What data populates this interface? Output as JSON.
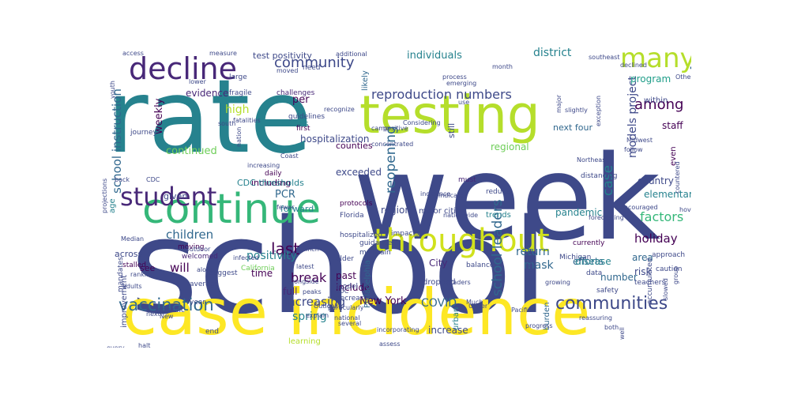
{
  "palette": [
    "#fde725",
    "#b5de2b",
    "#6ece58",
    "#35b779",
    "#1f9e89",
    "#26828e",
    "#31688e",
    "#3e4989",
    "#482878",
    "#440154"
  ],
  "words": [
    {
      "text": "school",
      "color": "#3e4989"
    },
    {
      "text": "week",
      "color": "#3e4989"
    },
    {
      "text": "rate",
      "color": "#26828e"
    },
    {
      "text": "case incidence",
      "color": "#fde725"
    },
    {
      "text": "testing",
      "color": "#b5de2b"
    },
    {
      "text": "continue",
      "color": "#35b779"
    },
    {
      "text": "throughout",
      "color": "#d0e11c"
    },
    {
      "text": "decline",
      "color": "#482878"
    },
    {
      "text": "student",
      "color": "#482878"
    },
    {
      "text": "many",
      "color": "#b5de2b"
    },
    {
      "text": "transmission",
      "color": "#31688e"
    },
    {
      "text": "communities",
      "color": "#3e4989"
    },
    {
      "text": "vaccination",
      "color": "#31688e"
    },
    {
      "text": "community",
      "color": "#3e4989"
    },
    {
      "text": "reproduction numbers",
      "color": "#3e4989"
    },
    {
      "text": "among",
      "color": "#440154"
    },
    {
      "text": "school leaders",
      "color": "#31688e"
    },
    {
      "text": "last",
      "color": "#440154"
    },
    {
      "text": "increasing",
      "color": "#3e4989"
    },
    {
      "text": "reopening",
      "color": "#31688e"
    },
    {
      "text": "case",
      "color": "#26828e"
    },
    {
      "text": "factors",
      "color": "#35b779"
    },
    {
      "text": "school instruction",
      "color": "#31688e"
    },
    {
      "text": "children",
      "color": "#31688e"
    },
    {
      "text": "holiday",
      "color": "#440154"
    },
    {
      "text": "models project",
      "color": "#3e4989"
    },
    {
      "text": "weekly",
      "color": "#440154"
    },
    {
      "text": "positivity",
      "color": "#26828e"
    },
    {
      "text": "will",
      "color": "#440154"
    },
    {
      "text": "break",
      "color": "#440154"
    },
    {
      "text": "spring",
      "color": "#26828e"
    },
    {
      "text": "COVID",
      "color": "#31688e"
    },
    {
      "text": "New York",
      "color": "#440154"
    },
    {
      "text": "return",
      "color": "#31688e"
    },
    {
      "text": "mask",
      "color": "#31688e"
    },
    {
      "text": "hospitalization",
      "color": "#3e4989"
    },
    {
      "text": "continued",
      "color": "#6ece58"
    },
    {
      "text": "high",
      "color": "#b5de2b"
    },
    {
      "text": "PCR",
      "color": "#31688e"
    },
    {
      "text": "per",
      "color": "#440154"
    },
    {
      "text": "evidence",
      "color": "#482878"
    },
    {
      "text": "test positivity",
      "color": "#3e4989"
    },
    {
      "text": "individuals",
      "color": "#26828e"
    },
    {
      "text": "district",
      "color": "#26828e"
    },
    {
      "text": "program",
      "color": "#1f9e89"
    },
    {
      "text": "staff",
      "color": "#440154"
    },
    {
      "text": "country",
      "color": "#3e4989"
    },
    {
      "text": "elementary",
      "color": "#26828e"
    },
    {
      "text": "pandemic",
      "color": "#26828e"
    },
    {
      "text": "efforts",
      "color": "#31688e"
    },
    {
      "text": "disease",
      "color": "#26828e"
    },
    {
      "text": "area",
      "color": "#31688e"
    },
    {
      "text": "risk",
      "color": "#3e4989"
    },
    {
      "text": "number",
      "color": "#31688e"
    },
    {
      "text": "time",
      "color": "#440154"
    },
    {
      "text": "full",
      "color": "#482878"
    },
    {
      "text": "past",
      "color": "#440154"
    },
    {
      "text": "include",
      "color": "#440154"
    },
    {
      "text": "City",
      "color": "#482878"
    },
    {
      "text": "increase",
      "color": "#3e4989"
    },
    {
      "text": "exceeded",
      "color": "#3e4989"
    },
    {
      "text": "region",
      "color": "#3e4989"
    },
    {
      "text": "regional",
      "color": "#6ece58"
    },
    {
      "text": "next four",
      "color": "#31688e"
    },
    {
      "text": "counties",
      "color": "#440154"
    },
    {
      "text": "deaths",
      "color": "#26828e"
    },
    {
      "text": "within",
      "color": "#3e4989"
    },
    {
      "text": "including",
      "color": "#440154"
    },
    {
      "text": "CDC thresholds",
      "color": "#26828e"
    },
    {
      "text": "across",
      "color": "#3e4989"
    },
    {
      "text": "forward",
      "color": "#26828e"
    },
    {
      "text": "given",
      "color": "#3e4989"
    },
    {
      "text": "see",
      "color": "#440154"
    },
    {
      "text": "improvement",
      "color": "#3e4989"
    },
    {
      "text": "still",
      "color": "#3e4989"
    },
    {
      "text": "likely",
      "color": "#31688e"
    },
    {
      "text": "age",
      "color": "#26828e"
    },
    {
      "text": "even",
      "color": "#440154"
    },
    {
      "text": "trends",
      "color": "#26828e"
    },
    {
      "text": "major cities",
      "color": "#3e4989"
    },
    {
      "text": "Philadelphia",
      "color": "#31688e"
    },
    {
      "text": "learning",
      "color": "#b5de2b"
    },
    {
      "text": "burden",
      "color": "#31688e"
    },
    {
      "text": "urban",
      "color": "#26828e"
    },
    {
      "text": "dropped",
      "color": "#3e4989"
    },
    {
      "text": "Florida",
      "color": "#3e4989"
    },
    {
      "text": "protocols",
      "color": "#440154"
    },
    {
      "text": "hospitalized",
      "color": "#3e4989"
    },
    {
      "text": "must",
      "color": "#482878"
    },
    {
      "text": "reduce",
      "color": "#3e4989"
    },
    {
      "text": "distancing",
      "color": "#3e4989"
    },
    {
      "text": "first",
      "color": "#440154"
    },
    {
      "text": "guidelines",
      "color": "#3e4989"
    },
    {
      "text": "challenges",
      "color": "#482878"
    },
    {
      "text": "fragile",
      "color": "#3e4989"
    },
    {
      "text": "large",
      "color": "#3e4989"
    },
    {
      "text": "need",
      "color": "#3e4989"
    },
    {
      "text": "daily",
      "color": "#440154"
    },
    {
      "text": "journey",
      "color": "#3e4989"
    },
    {
      "text": "stalled",
      "color": "#440154"
    },
    {
      "text": "welcomed",
      "color": "#482878"
    },
    {
      "text": "moving",
      "color": "#440154"
    },
    {
      "text": "California",
      "color": "#6ece58"
    },
    {
      "text": "older",
      "color": "#3e4989"
    },
    {
      "text": "maintain",
      "color": "#3e4989"
    },
    {
      "text": "model",
      "color": "#3e4989"
    },
    {
      "text": "decrease",
      "color": "#3e4989"
    },
    {
      "text": "guidance",
      "color": "#3e4989"
    },
    {
      "text": "impacts",
      "color": "#3e4989"
    },
    {
      "text": "balance",
      "color": "#3e4989"
    },
    {
      "text": "currently",
      "color": "#440154"
    },
    {
      "text": "Michigan",
      "color": "#3e4989"
    },
    {
      "text": "data",
      "color": "#3e4989"
    },
    {
      "text": "approach",
      "color": "#3e4989"
    },
    {
      "text": "caution",
      "color": "#3e4989"
    },
    {
      "text": "teachers",
      "color": "#3e4989"
    },
    {
      "text": "safety",
      "color": "#3e4989"
    },
    {
      "text": "Although",
      "color": "#3e4989"
    },
    {
      "text": "accumulated",
      "color": "#3e4989"
    },
    {
      "text": "mandates",
      "color": "#3e4989"
    },
    {
      "text": "specific",
      "color": "#3e4989"
    },
    {
      "text": "end",
      "color": "#3e4989"
    },
    {
      "text": "average",
      "color": "#3e4989"
    },
    {
      "text": "year",
      "color": "#3e4989"
    },
    {
      "text": "suggest",
      "color": "#3e4989"
    },
    {
      "text": "incidence",
      "color": "#3e4989"
    },
    {
      "text": "indicates",
      "color": "#3e4989"
    },
    {
      "text": "nationwide",
      "color": "#3e4989"
    },
    {
      "text": "forecasting",
      "color": "#3e4989"
    },
    {
      "text": "encouraged",
      "color": "#3e4989"
    },
    {
      "text": "hovering",
      "color": "#3e4989"
    },
    {
      "text": "countered",
      "color": "#3e4989"
    },
    {
      "text": "Midwest",
      "color": "#3e4989"
    },
    {
      "text": "follow",
      "color": "#3e4989"
    },
    {
      "text": "declined",
      "color": "#3e4989"
    },
    {
      "text": "southeast",
      "color": "#3e4989"
    },
    {
      "text": "month",
      "color": "#3e4989"
    },
    {
      "text": "process",
      "color": "#3e4989"
    },
    {
      "text": "emerging",
      "color": "#3e4989"
    },
    {
      "text": "use",
      "color": "#3e4989"
    },
    {
      "text": "exception",
      "color": "#3e4989"
    },
    {
      "text": "additional",
      "color": "#3e4989"
    },
    {
      "text": "moved",
      "color": "#3e4989"
    },
    {
      "text": "recognize",
      "color": "#3e4989"
    },
    {
      "text": "Considering",
      "color": "#3e4989"
    },
    {
      "text": "concentrated",
      "color": "#3e4989"
    },
    {
      "text": "fatalities",
      "color": "#3e4989"
    },
    {
      "text": "nation",
      "color": "#3e4989"
    },
    {
      "text": "CDC",
      "color": "#3e4989"
    },
    {
      "text": "Median",
      "color": "#3e4989"
    },
    {
      "text": "outdoor",
      "color": "#3e4989"
    },
    {
      "text": "infected",
      "color": "#3e4989"
    },
    {
      "text": "latest",
      "color": "#3e4989"
    },
    {
      "text": "alongside",
      "color": "#3e4989"
    },
    {
      "text": "peaks",
      "color": "#3e4989"
    },
    {
      "text": "along",
      "color": "#3e4989"
    },
    {
      "text": "adults",
      "color": "#3e4989"
    },
    {
      "text": "next",
      "color": "#3e4989"
    },
    {
      "text": "halt",
      "color": "#3e4989"
    },
    {
      "text": "every",
      "color": "#3e4989"
    },
    {
      "text": "explain",
      "color": "#3e4989"
    },
    {
      "text": "Outlook",
      "color": "#3e4989"
    },
    {
      "text": "particularly",
      "color": "#3e4989"
    },
    {
      "text": "several",
      "color": "#3e4989"
    },
    {
      "text": "national",
      "color": "#3e4989"
    },
    {
      "text": "assess",
      "color": "#3e4989"
    },
    {
      "text": "Upper",
      "color": "#3e4989"
    },
    {
      "text": "Pacific",
      "color": "#3e4989"
    },
    {
      "text": "progress",
      "color": "#3e4989"
    },
    {
      "text": "reassuring",
      "color": "#3e4989"
    },
    {
      "text": "both",
      "color": "#3e4989"
    },
    {
      "text": "well",
      "color": "#3e4989"
    },
    {
      "text": "slowed",
      "color": "#3e4989"
    },
    {
      "text": "Much",
      "color": "#3e4989"
    },
    {
      "text": "growing",
      "color": "#3e4989"
    },
    {
      "text": "graders",
      "color": "#3e4989"
    },
    {
      "text": "youth",
      "color": "#3e4989"
    },
    {
      "text": "access",
      "color": "#3e4989"
    },
    {
      "text": "measure",
      "color": "#3e4989"
    },
    {
      "text": "Others",
      "color": "#3e4989"
    },
    {
      "text": "group",
      "color": "#3e4989"
    },
    {
      "text": "incorporating",
      "color": "#3e4989"
    },
    {
      "text": "back",
      "color": "#3e4989"
    },
    {
      "text": "projections",
      "color": "#3e4989"
    },
    {
      "text": "Coast",
      "color": "#3e4989"
    },
    {
      "text": "slightly",
      "color": "#3e4989"
    },
    {
      "text": "major",
      "color": "#3e4989"
    },
    {
      "text": "Northeast",
      "color": "#3e4989"
    },
    {
      "text": "camp",
      "color": "#3e4989"
    },
    {
      "text": "positive",
      "color": "#3e4989"
    },
    {
      "text": "ranking",
      "color": "#3e4989"
    },
    {
      "text": "New",
      "color": "#3e4989"
    },
    {
      "text": "lower",
      "color": "#3e4989"
    },
    {
      "text": "south",
      "color": "#3e4989"
    },
    {
      "text": "increasing",
      "color": "#3e4989"
    },
    {
      "text": "fewer",
      "color": "#3e4989"
    },
    {
      "text": "inch",
      "color": "#3e4989"
    },
    {
      "text": "CDC",
      "color": "#3e4989"
    }
  ]
}
